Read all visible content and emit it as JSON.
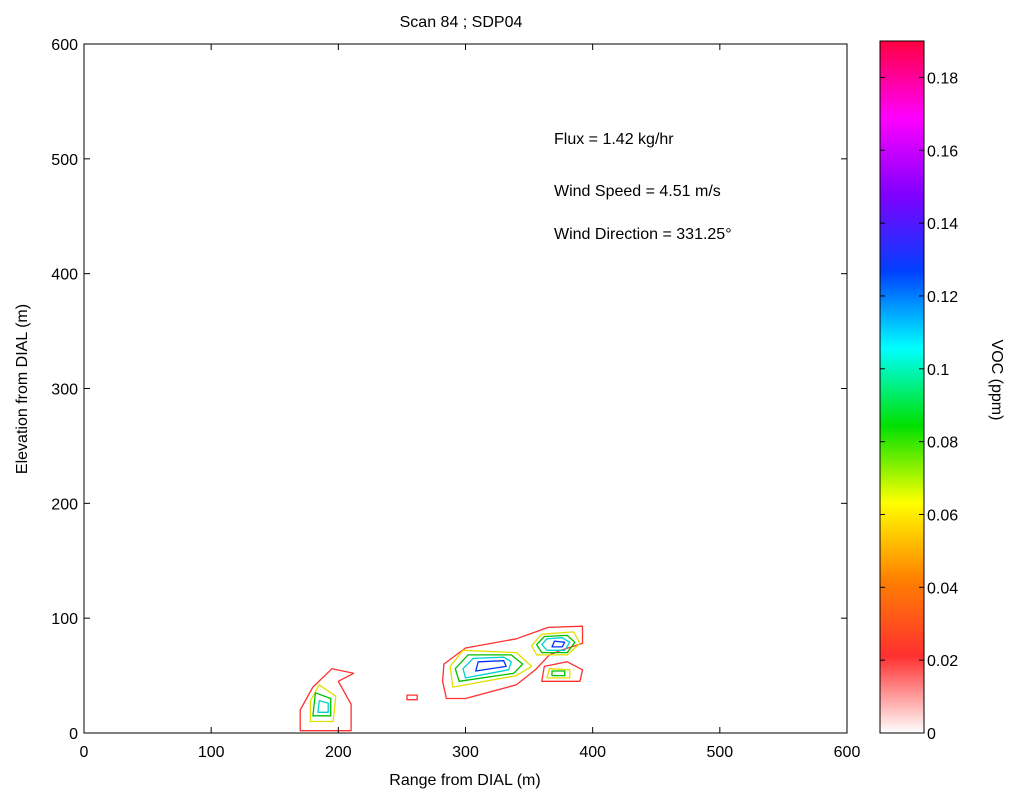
{
  "chart_data": {
    "type": "contour",
    "title": "Scan 84 ; SDP04",
    "xlabel": "Range from DIAL (m)",
    "ylabel": "Elevation from DIAL (m)",
    "xlim": [
      0,
      600
    ],
    "ylim": [
      0,
      600
    ],
    "xticks": [
      0,
      100,
      200,
      300,
      400,
      500,
      600
    ],
    "yticks": [
      0,
      100,
      200,
      300,
      400,
      500,
      600
    ],
    "annotations": {
      "flux": "Flux = 1.42 kg/hr",
      "wind_speed": "Wind Speed = 4.51 m/s",
      "wind_direction": "Wind Direction = 331.25°"
    },
    "colorbar": {
      "label": "VOC (ppm)",
      "range": [
        0,
        0.19
      ],
      "ticks": [
        "0",
        "0.02",
        "0.04",
        "0.06",
        "0.08",
        "0.1",
        "0.12",
        "0.14",
        "0.16",
        "0.18"
      ],
      "tick_values": [
        0,
        0.02,
        0.04,
        0.06,
        0.08,
        0.1,
        0.12,
        0.14,
        0.16,
        0.18
      ],
      "colormap": [
        "#ffffff",
        "#ff3030",
        "#ff8000",
        "#ffff00",
        "#00e000",
        "#00ffff",
        "#0040ff",
        "#8000ff",
        "#ff00ff",
        "#ff0040"
      ]
    },
    "contours": [
      {
        "level": 0.02,
        "color": "#ff3030",
        "points": [
          [
            170,
            2
          ],
          [
            210,
            2
          ],
          [
            210,
            25
          ],
          [
            200,
            45
          ],
          [
            212,
            52
          ],
          [
            195,
            56
          ],
          [
            180,
            40
          ],
          [
            170,
            20
          ]
        ]
      },
      {
        "level": 0.02,
        "color": "#ff3030",
        "points": [
          [
            254,
            29
          ],
          [
            262,
            29
          ],
          [
            262,
            33
          ],
          [
            254,
            33
          ]
        ]
      },
      {
        "level": 0.02,
        "color": "#ff3030",
        "points": [
          [
            285,
            30
          ],
          [
            300,
            30
          ],
          [
            340,
            42
          ],
          [
            355,
            55
          ],
          [
            366,
            68
          ],
          [
            375,
            72
          ],
          [
            392,
            78
          ],
          [
            392,
            93
          ],
          [
            365,
            92
          ],
          [
            340,
            82
          ],
          [
            300,
            74
          ],
          [
            283,
            60
          ],
          [
            282,
            45
          ]
        ]
      },
      {
        "level": 0.02,
        "color": "#ff3030",
        "points": [
          [
            360,
            45
          ],
          [
            390,
            45
          ],
          [
            392,
            55
          ],
          [
            380,
            62
          ],
          [
            362,
            58
          ]
        ]
      },
      {
        "level": 0.06,
        "color": "#e0e000",
        "points": [
          [
            178,
            10
          ],
          [
            196,
            10
          ],
          [
            198,
            32
          ],
          [
            185,
            42
          ],
          [
            178,
            28
          ]
        ]
      },
      {
        "level": 0.06,
        "color": "#e0e000",
        "points": [
          [
            290,
            40
          ],
          [
            340,
            50
          ],
          [
            352,
            58
          ],
          [
            340,
            70
          ],
          [
            298,
            72
          ],
          [
            288,
            58
          ]
        ]
      },
      {
        "level": 0.06,
        "color": "#e0e000",
        "points": [
          [
            356,
            68
          ],
          [
            380,
            68
          ],
          [
            390,
            78
          ],
          [
            385,
            88
          ],
          [
            360,
            86
          ],
          [
            352,
            76
          ]
        ]
      },
      {
        "level": 0.06,
        "color": "#e0e000",
        "points": [
          [
            364,
            48
          ],
          [
            382,
            48
          ],
          [
            382,
            55
          ],
          [
            366,
            56
          ]
        ]
      },
      {
        "level": 0.08,
        "color": "#00c000",
        "points": [
          [
            180,
            15
          ],
          [
            194,
            15
          ],
          [
            194,
            30
          ],
          [
            182,
            35
          ]
        ]
      },
      {
        "level": 0.08,
        "color": "#00c000",
        "points": [
          [
            295,
            45
          ],
          [
            338,
            52
          ],
          [
            345,
            60
          ],
          [
            336,
            68
          ],
          [
            302,
            68
          ],
          [
            292,
            56
          ]
        ]
      },
      {
        "level": 0.08,
        "color": "#00c000",
        "points": [
          [
            360,
            70
          ],
          [
            380,
            70
          ],
          [
            386,
            79
          ],
          [
            380,
            85
          ],
          [
            362,
            84
          ],
          [
            356,
            77
          ]
        ]
      },
      {
        "level": 0.08,
        "color": "#00c000",
        "points": [
          [
            368,
            50
          ],
          [
            378,
            50
          ],
          [
            378,
            54
          ],
          [
            368,
            54
          ]
        ]
      },
      {
        "level": 0.1,
        "color": "#00d0d0",
        "points": [
          [
            184,
            18
          ],
          [
            192,
            18
          ],
          [
            192,
            26
          ],
          [
            185,
            28
          ]
        ]
      },
      {
        "level": 0.1,
        "color": "#00d0d0",
        "points": [
          [
            300,
            48
          ],
          [
            334,
            55
          ],
          [
            336,
            62
          ],
          [
            330,
            66
          ],
          [
            306,
            65
          ],
          [
            298,
            56
          ]
        ]
      },
      {
        "level": 0.1,
        "color": "#00d0d0",
        "points": [
          [
            364,
            72
          ],
          [
            378,
            72
          ],
          [
            382,
            79
          ],
          [
            376,
            83
          ],
          [
            364,
            82
          ],
          [
            360,
            77
          ]
        ]
      },
      {
        "level": 0.14,
        "color": "#0030ff",
        "points": [
          [
            308,
            54
          ],
          [
            332,
            58
          ],
          [
            330,
            63
          ],
          [
            310,
            62
          ]
        ]
      },
      {
        "level": 0.14,
        "color": "#0030ff",
        "points": [
          [
            368,
            75
          ],
          [
            376,
            75
          ],
          [
            378,
            79
          ],
          [
            370,
            80
          ]
        ]
      }
    ]
  }
}
